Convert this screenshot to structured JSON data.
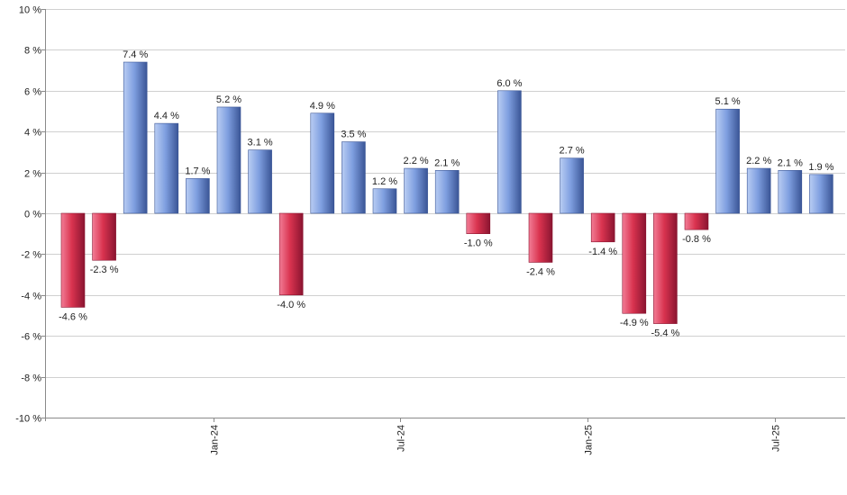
{
  "chart_data": {
    "type": "bar",
    "title": "",
    "xlabel": "",
    "ylabel": "",
    "ylim": [
      -10,
      10
    ],
    "yticks": [
      10,
      8,
      6,
      4,
      2,
      0,
      -2,
      -4,
      -6,
      -8,
      -10
    ],
    "ytick_labels": [
      "10 %",
      "8 %",
      "6 %",
      "4 %",
      "2 %",
      "0 %",
      "-2 %",
      "-4 %",
      "-6 %",
      "-8 %",
      "-10 %"
    ],
    "values": [
      -4.6,
      -2.3,
      7.4,
      4.4,
      1.7,
      5.2,
      3.1,
      -4.0,
      4.9,
      3.5,
      1.2,
      2.2,
      2.1,
      -1.0,
      6.0,
      -2.4,
      2.7,
      -1.4,
      -4.9,
      -5.4,
      -0.8,
      5.1,
      2.2,
      2.1,
      1.9
    ],
    "value_labels": [
      "-4.6 %",
      "-2.3 %",
      "7.4 %",
      "4.4 %",
      "1.7 %",
      "5.2 %",
      "3.1 %",
      "-4.0 %",
      "4.9 %",
      "3.5 %",
      "1.2 %",
      "2.2 %",
      "2.1 %",
      "-1.0 %",
      "6.0 %",
      "-2.4 %",
      "2.7 %",
      "-1.4 %",
      "-4.9 %",
      "-5.4 %",
      "-0.8 %",
      "5.1 %",
      "2.2 %",
      "2.1 %",
      "1.9 %"
    ],
    "xticks": [
      {
        "label": "Jan-24",
        "index": 4.5
      },
      {
        "label": "Jul-24",
        "index": 10.5
      },
      {
        "label": "Jan-25",
        "index": 16.5
      },
      {
        "label": "Jul-25",
        "index": 22.5
      }
    ],
    "grid": true,
    "legend": "none",
    "colors": {
      "positive_light": "#b9cdf3",
      "positive_mid": "#7f9fe0",
      "positive_dark": "#3a5596",
      "negative_light": "#f27d96",
      "negative_mid": "#d9334f",
      "negative_dark": "#8a1430",
      "grid": "#d0d0d0",
      "axis": "#8a8a8a",
      "text": "#222222"
    }
  }
}
